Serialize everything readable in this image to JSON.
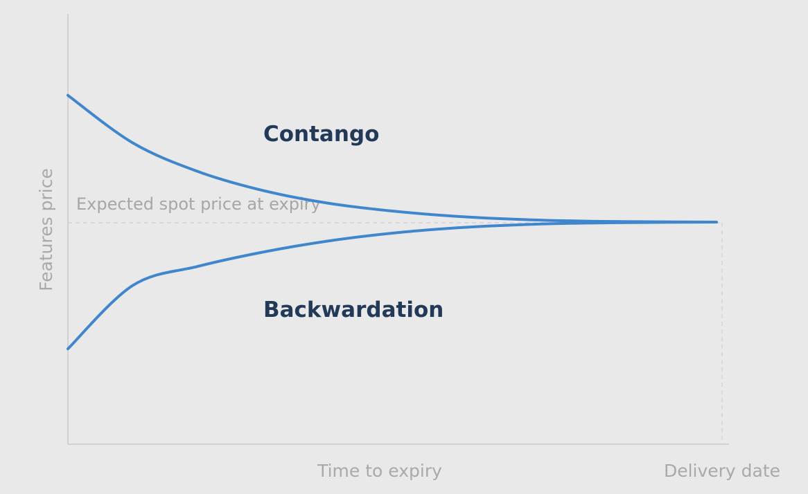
{
  "chart_data": {
    "type": "line",
    "title": "",
    "xlabel": "Time to expiry",
    "x_end_label": "Delivery date",
    "ylabel": "Features price",
    "reference_line": {
      "label": "Expected spot price at expiry",
      "value": 0.5
    },
    "xlim": [
      0,
      1
    ],
    "ylim": [
      0,
      1
    ],
    "grid": false,
    "series": [
      {
        "name": "Contango",
        "color": "#3f86cc",
        "x": [
          0,
          0.1,
          0.2,
          0.3,
          0.4,
          0.5,
          0.6,
          0.7,
          0.8,
          0.9,
          1.0
        ],
        "y": [
          0.9,
          0.75,
          0.66,
          0.6,
          0.56,
          0.535,
          0.518,
          0.508,
          0.503,
          0.501,
          0.5
        ]
      },
      {
        "name": "Backwardation",
        "color": "#3f86cc",
        "x": [
          0,
          0.1,
          0.2,
          0.3,
          0.4,
          0.5,
          0.6,
          0.7,
          0.8,
          0.9,
          1.0
        ],
        "y": [
          0.1,
          0.3,
          0.36,
          0.405,
          0.44,
          0.465,
          0.482,
          0.492,
          0.497,
          0.499,
          0.5
        ]
      }
    ]
  }
}
